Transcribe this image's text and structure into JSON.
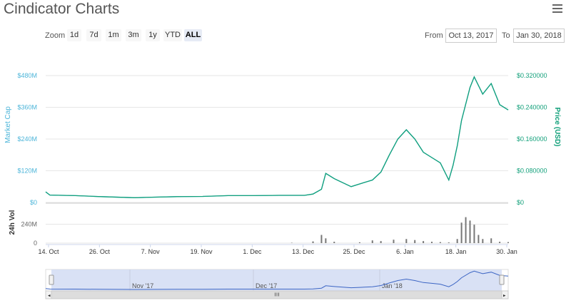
{
  "header": {
    "title": "Cindicator Charts",
    "menu_icon": "hamburger-menu-icon"
  },
  "zoom": {
    "label": "Zoom",
    "buttons": [
      "1d",
      "7d",
      "1m",
      "3m",
      "1y",
      "YTD",
      "ALL"
    ],
    "active": "ALL"
  },
  "range": {
    "from_label": "From",
    "from_value": "Oct 13, 2017",
    "to_label": "To",
    "to_value": "Jan 30, 2018"
  },
  "colors": {
    "market_cap": "#4cb5d9",
    "price": "#12a07a",
    "volume": "#777777",
    "navigator_line": "#3c65c4",
    "navigator_fill": "#d0daf2"
  },
  "chart_data": {
    "type": "line",
    "x_range": [
      "2017-10-13",
      "2018-01-30"
    ],
    "x_ticks": [
      "14. Oct",
      "26. Oct",
      "7. Nov",
      "19. Nov",
      "1. Dec",
      "13. Dec",
      "25. Dec",
      "6. Jan",
      "18. Jan",
      "30. Jan"
    ],
    "y_left": {
      "label": "Market Cap",
      "ticks": [
        "$0",
        "$120M",
        "$240M",
        "$360M",
        "$480M"
      ],
      "range": [
        0,
        480000000
      ]
    },
    "y_right": {
      "label": "Price (USD)",
      "ticks": [
        "$0",
        "$0.080000",
        "$0.160000",
        "$0.240000",
        "$0.320000"
      ],
      "range": [
        0,
        0.32
      ]
    },
    "volume_axis": {
      "label": "24h Vol",
      "ticks": [
        "0",
        "240M"
      ],
      "range": [
        0,
        480000000
      ]
    },
    "navigator_ticks": [
      "Nov '17",
      "Dec '17",
      "Jan '18"
    ],
    "series": [
      {
        "name": "Market Cap",
        "points": [
          [
            "2017-10-13",
            40000000
          ],
          [
            "2017-10-14",
            28000000
          ],
          [
            "2017-10-20",
            26000000
          ],
          [
            "2017-10-26",
            22000000
          ],
          [
            "2017-11-03",
            18000000
          ],
          [
            "2017-11-07",
            20000000
          ],
          [
            "2017-11-13",
            22000000
          ],
          [
            "2017-11-19",
            23000000
          ],
          [
            "2017-11-25",
            26000000
          ],
          [
            "2017-12-01",
            26000000
          ],
          [
            "2017-12-07",
            27000000
          ],
          [
            "2017-12-13",
            27000000
          ],
          [
            "2017-12-15",
            32000000
          ],
          [
            "2017-12-17",
            50000000
          ],
          [
            "2017-12-18",
            110000000
          ],
          [
            "2017-12-20",
            90000000
          ],
          [
            "2017-12-22",
            75000000
          ],
          [
            "2017-12-24",
            60000000
          ],
          [
            "2017-12-26",
            70000000
          ],
          [
            "2017-12-29",
            85000000
          ],
          [
            "2017-12-31",
            115000000
          ],
          [
            "2018-01-02",
            180000000
          ],
          [
            "2018-01-04",
            240000000
          ],
          [
            "2018-01-06",
            275000000
          ],
          [
            "2018-01-08",
            240000000
          ],
          [
            "2018-01-10",
            190000000
          ],
          [
            "2018-01-12",
            170000000
          ],
          [
            "2018-01-14",
            150000000
          ],
          [
            "2018-01-16",
            85000000
          ],
          [
            "2018-01-17",
            140000000
          ],
          [
            "2018-01-18",
            215000000
          ],
          [
            "2018-01-19",
            310000000
          ],
          [
            "2018-01-21",
            435000000
          ],
          [
            "2018-01-22",
            475000000
          ],
          [
            "2018-01-24",
            410000000
          ],
          [
            "2018-01-26",
            450000000
          ],
          [
            "2018-01-28",
            370000000
          ],
          [
            "2018-01-30",
            350000000
          ]
        ]
      },
      {
        "name": "Price (USD)",
        "points": [
          [
            "2017-10-13",
            0.0267
          ],
          [
            "2017-10-14",
            0.0187
          ],
          [
            "2017-10-20",
            0.0173
          ],
          [
            "2017-10-26",
            0.0147
          ],
          [
            "2017-11-03",
            0.012
          ],
          [
            "2017-11-07",
            0.0133
          ],
          [
            "2017-11-13",
            0.0147
          ],
          [
            "2017-11-19",
            0.0153
          ],
          [
            "2017-11-25",
            0.0173
          ],
          [
            "2017-12-01",
            0.0173
          ],
          [
            "2017-12-07",
            0.018
          ],
          [
            "2017-12-13",
            0.018
          ],
          [
            "2017-12-15",
            0.0213
          ],
          [
            "2017-12-17",
            0.0333
          ],
          [
            "2017-12-18",
            0.0733
          ],
          [
            "2017-12-20",
            0.06
          ],
          [
            "2017-12-22",
            0.05
          ],
          [
            "2017-12-24",
            0.04
          ],
          [
            "2017-12-26",
            0.0467
          ],
          [
            "2017-12-29",
            0.0567
          ],
          [
            "2017-12-31",
            0.0767
          ],
          [
            "2018-01-02",
            0.12
          ],
          [
            "2018-01-04",
            0.16
          ],
          [
            "2018-01-06",
            0.1833
          ],
          [
            "2018-01-08",
            0.16
          ],
          [
            "2018-01-10",
            0.1267
          ],
          [
            "2018-01-12",
            0.1133
          ],
          [
            "2018-01-14",
            0.1
          ],
          [
            "2018-01-16",
            0.0567
          ],
          [
            "2018-01-17",
            0.0933
          ],
          [
            "2018-01-18",
            0.1433
          ],
          [
            "2018-01-19",
            0.2067
          ],
          [
            "2018-01-21",
            0.29
          ],
          [
            "2018-01-22",
            0.3167
          ],
          [
            "2018-01-24",
            0.2733
          ],
          [
            "2018-01-26",
            0.3
          ],
          [
            "2018-01-28",
            0.2467
          ],
          [
            "2018-01-30",
            0.2333
          ]
        ]
      },
      {
        "name": "24h Vol",
        "points": [
          [
            "2017-12-10",
            5000000
          ],
          [
            "2017-12-15",
            25000000
          ],
          [
            "2017-12-17",
            120000000
          ],
          [
            "2017-12-18",
            70000000
          ],
          [
            "2017-12-20",
            20000000
          ],
          [
            "2017-12-26",
            12000000
          ],
          [
            "2017-12-29",
            40000000
          ],
          [
            "2017-12-31",
            30000000
          ],
          [
            "2018-01-03",
            50000000
          ],
          [
            "2018-01-06",
            60000000
          ],
          [
            "2018-01-08",
            45000000
          ],
          [
            "2018-01-10",
            30000000
          ],
          [
            "2018-01-12",
            20000000
          ],
          [
            "2018-01-14",
            15000000
          ],
          [
            "2018-01-16",
            10000000
          ],
          [
            "2018-01-18",
            60000000
          ],
          [
            "2018-01-19",
            300000000
          ],
          [
            "2018-01-20",
            380000000
          ],
          [
            "2018-01-21",
            330000000
          ],
          [
            "2018-01-22",
            270000000
          ],
          [
            "2018-01-23",
            120000000
          ],
          [
            "2018-01-24",
            60000000
          ],
          [
            "2018-01-26",
            70000000
          ],
          [
            "2018-01-28",
            20000000
          ],
          [
            "2018-01-30",
            15000000
          ]
        ]
      }
    ]
  }
}
